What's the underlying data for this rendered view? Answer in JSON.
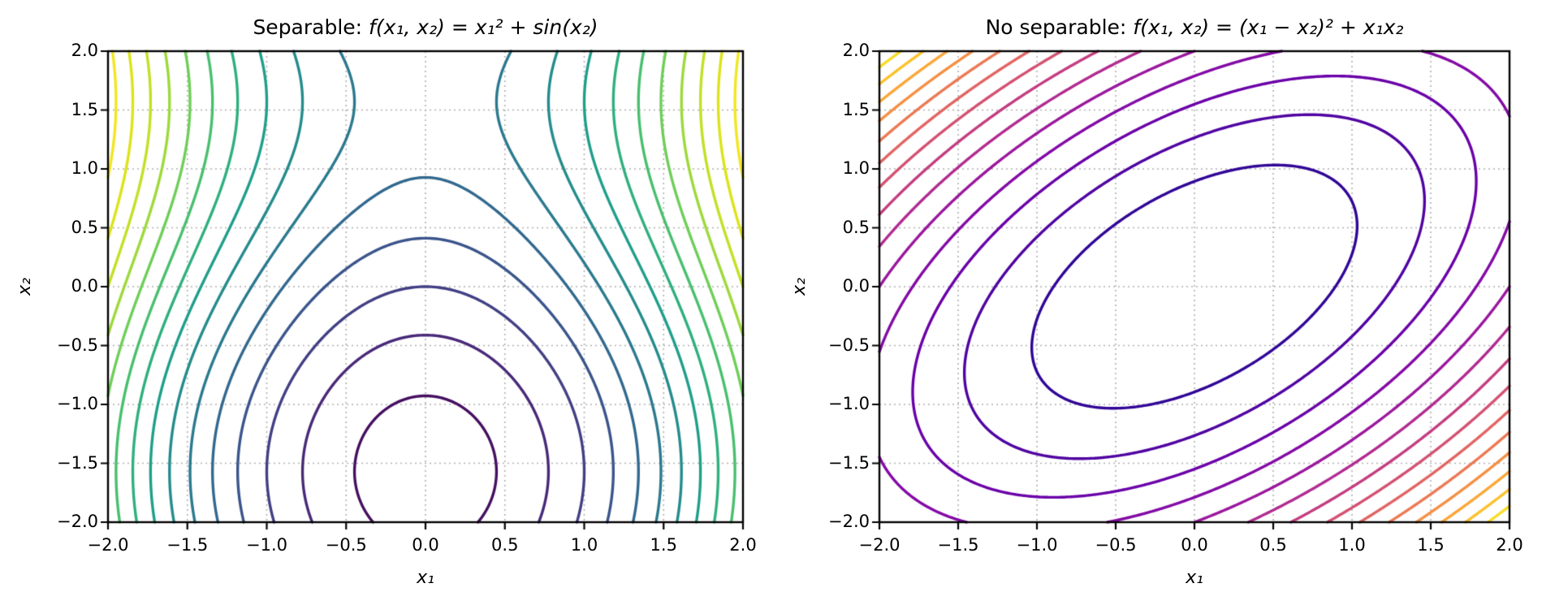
{
  "styles": {
    "background": "#ffffff",
    "text_color": "#000000",
    "spine_color": "#000000",
    "grid_color": "#b0b0b0",
    "grid_linestyle": "dotted"
  },
  "chart_data": [
    {
      "type": "contour",
      "title_prefix": "Separable: ",
      "title_math": "f(x₁, x₂) = x₁² + sin(x₂)",
      "function": "f(x1,x2) = x1^2 + sin(x2)",
      "fn_id": "sq_plus_sin",
      "xlabel": "x₁",
      "ylabel": "x₂",
      "xlim": [
        -2,
        2
      ],
      "ylim": [
        -2,
        2
      ],
      "xticks": [
        -2,
        -1.5,
        -1,
        -0.5,
        0,
        0.5,
        1,
        1.5,
        2
      ],
      "yticks": [
        -2,
        -1.5,
        -1,
        -0.5,
        0,
        0.5,
        1,
        1.5,
        2
      ],
      "xtick_labels": [
        "−2.0",
        "−1.5",
        "−1.0",
        "−0.5",
        "0.0",
        "0.5",
        "1.0",
        "1.5",
        "2.0"
      ],
      "ytick_labels": [
        "−2.0",
        "−1.5",
        "−1.0",
        "−0.5",
        "0.0",
        "0.5",
        "1.0",
        "1.5",
        "2.0"
      ],
      "levels": [
        -0.8,
        -0.4,
        0.0,
        0.4,
        0.8,
        1.2,
        1.6,
        2.0,
        2.4,
        2.8,
        3.2,
        3.6,
        4.0,
        4.4,
        4.8
      ],
      "color_norm": [
        -1,
        5
      ],
      "colormap": "viridis",
      "grid": true
    },
    {
      "type": "contour",
      "title_prefix": "No separable: ",
      "title_math": "f(x₁, x₂) = (x₁ − x₂)² + x₁x₂",
      "function": "f(x1,x2) = (x1-x2)^2 + x1*x2",
      "fn_id": "quad_cross",
      "xlabel": "x₁",
      "ylabel": "x₂",
      "xlim": [
        -2,
        2
      ],
      "ylim": [
        -2,
        2
      ],
      "xticks": [
        -2,
        -1.5,
        -1,
        -0.5,
        0,
        0.5,
        1,
        1.5,
        2
      ],
      "yticks": [
        -2,
        -1.5,
        -1,
        -0.5,
        0,
        0.5,
        1,
        1.5,
        2
      ],
      "xtick_labels": [
        "−2.0",
        "−1.5",
        "−1.0",
        "−0.5",
        "0.0",
        "0.5",
        "1.0",
        "1.5",
        "2.0"
      ],
      "ytick_labels": [
        "−2.0",
        "−1.5",
        "−1.0",
        "−0.5",
        "0.0",
        "0.5",
        "1.0",
        "1.5",
        "2.0"
      ],
      "levels": [
        0.8,
        1.6,
        2.4,
        3.2,
        4.0,
        4.8,
        5.6,
        6.4,
        7.2,
        8.0,
        8.8,
        9.6,
        10.4,
        11.2
      ],
      "color_norm": [
        0,
        12
      ],
      "colormap": "plasma",
      "grid": true
    }
  ]
}
